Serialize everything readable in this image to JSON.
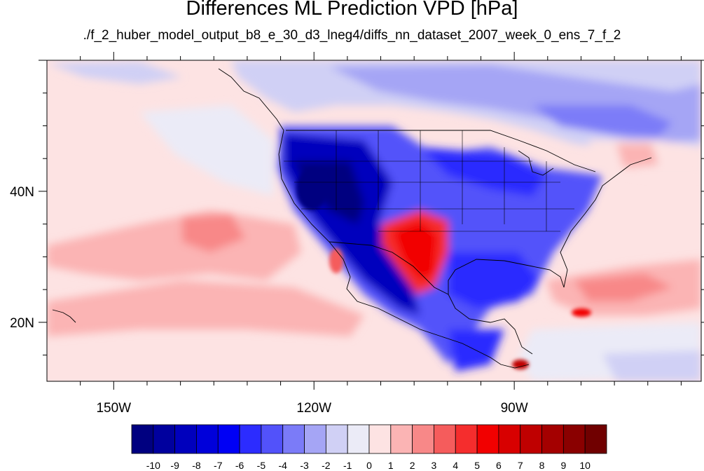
{
  "title": "Differences ML Prediction VPD [hPa]",
  "subtitle": "./f_2_huber_model_output_b8_e_30_d3_lneg4/diffs_nn_dataset_2007_week_0_ens_7_f_2",
  "map": {
    "lon_range": [
      -160,
      -62
    ],
    "lat_range": [
      11,
      60
    ],
    "x_ticks": [
      {
        "value": -150,
        "label": "150W"
      },
      {
        "value": -120,
        "label": "120W"
      },
      {
        "value": -90,
        "label": "90W"
      }
    ],
    "y_ticks": [
      {
        "value": 40,
        "label": "40N"
      },
      {
        "value": 20,
        "label": "20N"
      }
    ]
  },
  "colorbar": {
    "levels": [
      "-10",
      "-9",
      "-8",
      "-7",
      "-6",
      "-5",
      "-4",
      "-3",
      "-2",
      "-1",
      "0",
      "1",
      "2",
      "3",
      "4",
      "5",
      "6",
      "7",
      "8",
      "9",
      "10"
    ],
    "colors": [
      "#000080",
      "#00009e",
      "#0000bd",
      "#0000da",
      "#0000f5",
      "#2c2cff",
      "#5252fa",
      "#7b7bf8",
      "#a5a5f5",
      "#d0d0f5",
      "#ebebf7",
      "#fde3e3",
      "#fbb4b4",
      "#f88888",
      "#f55c5c",
      "#f52d2d",
      "#f20000",
      "#d80000",
      "#bf0000",
      "#a40000",
      "#8a0000",
      "#700000"
    ]
  }
}
